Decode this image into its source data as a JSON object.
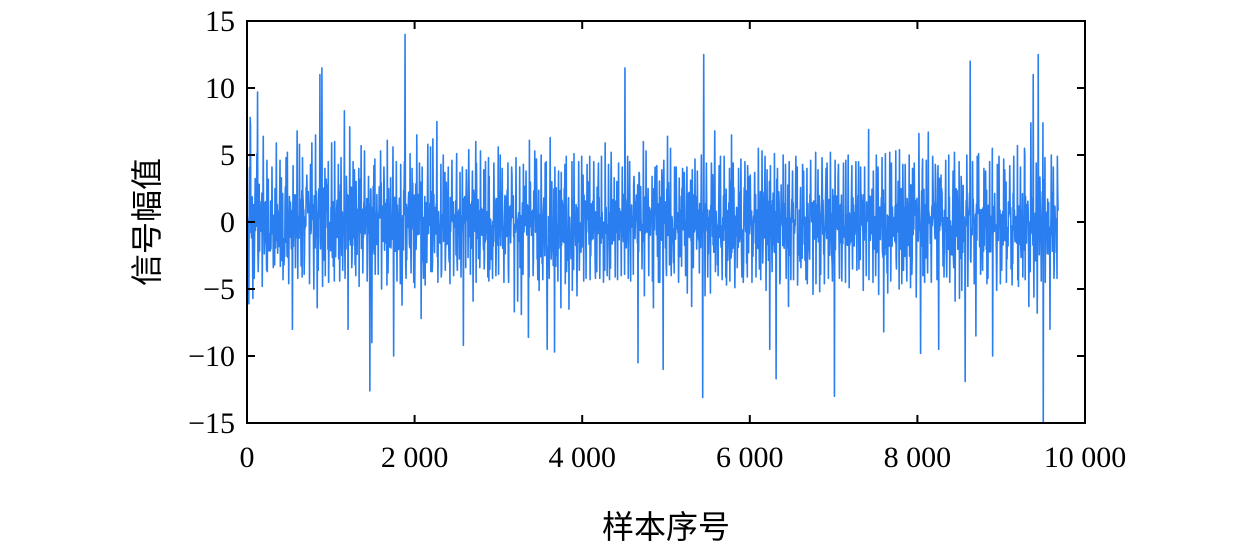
{
  "chart_data": {
    "type": "line",
    "xlabel": "样本序号",
    "ylabel": "信号幅值",
    "xlim": [
      0,
      10000
    ],
    "ylim": [
      -15,
      15
    ],
    "x_ticks": [
      0,
      2000,
      4000,
      6000,
      8000,
      10000
    ],
    "x_tick_labels": [
      "0",
      "2 000",
      "4 000",
      "6 000",
      "8 000",
      "10 000"
    ],
    "y_ticks": [
      -15,
      -10,
      -5,
      0,
      5,
      10,
      15
    ],
    "y_tick_labels": [
      "−15",
      "−10",
      "−5",
      "0",
      "5",
      "10",
      "15"
    ],
    "grid": false,
    "line_color": "#2a7ef0",
    "series": [
      {
        "x_start": 0,
        "x_step": 40,
        "y_max": [
          7.8,
          7.2,
          5.1,
          9.7,
          6.4,
          4.6,
          3.2,
          4.1,
          5.9,
          4.6,
          3.3,
          4.8,
          5.2,
          4.2,
          6.8,
          5.8,
          4.8,
          3.5,
          4.3,
          5.9,
          6.5,
          11.0,
          11.5,
          4.0,
          4.5,
          5.9,
          6.0,
          4.3,
          4.8,
          8.3,
          7.1,
          4.5,
          3.9,
          4.0,
          5.7,
          5.3,
          3.4,
          4.2,
          4.7,
          5.3,
          4.1,
          6.1,
          3.3,
          5.6,
          4.5,
          4.3,
          4.5,
          14.0,
          5.1,
          4.0,
          6.5,
          4.4,
          4.1,
          5.8,
          5.6,
          6.2,
          7.5,
          4.3,
          5.0,
          3.7,
          4.1,
          4.6,
          5.1,
          3.7,
          4.1,
          3.9,
          5.4,
          3.8,
          6.0,
          5.3,
          3.9,
          4.5,
          4.8,
          4.4,
          5.6,
          5.0,
          4.0,
          4.4,
          4.1,
          3.5,
          4.8,
          4.1,
          4.3,
          3.8,
          6.1,
          5.3,
          4.7,
          5.0,
          4.4,
          4.5,
          6.3,
          4.1,
          3.8,
          3.7,
          4.3,
          4.9,
          4.5,
          5.1,
          4.5,
          4.9,
          3.5,
          4.3,
          4.9,
          4.5,
          4.4,
          4.9,
          5.9,
          4.3,
          5.2,
          3.3,
          4.4,
          4.1,
          11.5,
          4.9,
          4.5,
          3.4,
          3.7,
          3.6,
          6.0,
          5.3,
          3.4,
          4.1,
          4.2,
          3.9,
          4.6,
          6.4,
          5.5,
          4.1,
          4.1,
          4.0,
          3.7,
          4.1,
          3.9,
          4.7,
          3.8,
          5.0,
          12.5,
          4.4,
          4.4,
          6.8,
          4.2,
          4.9,
          4.9,
          4.0,
          6.5,
          4.4,
          4.0,
          4.7,
          4.5,
          4.2,
          3.5,
          3.7,
          5.5,
          5.3,
          4.9,
          3.9,
          4.2,
          5.1,
          4.0,
          5.0,
          4.3,
          4.5,
          3.8,
          4.9,
          4.1,
          4.3,
          3.8,
          4.0,
          4.6,
          5.2,
          3.9,
          4.8,
          4.0,
          4.4,
          5.2,
          4.6,
          4.3,
          4.4,
          4.6,
          5.0,
          4.2,
          4.5,
          4.5,
          4.1,
          4.1,
          6.9,
          3.8,
          5.0,
          4.1,
          4.8,
          5.1,
          5.2,
          4.4,
          5.3,
          5.4,
          4.3,
          4.3,
          5.0,
          4.0,
          4.4,
          6.6,
          4.7,
          4.6,
          6.7,
          4.9,
          4.3,
          4.2,
          3.5,
          4.6,
          5.0,
          3.8,
          5.2,
          4.5,
          3.4,
          5.0,
          12.0,
          4.5,
          4.9,
          5.1,
          4.0,
          3.8,
          4.5,
          5.5,
          4.3,
          4.9,
          4.7,
          3.9,
          4.2,
          4.9,
          5.7,
          4.1,
          5.5,
          4.9,
          7.4,
          11.0,
          4.4,
          12.5,
          7.4,
          4.8,
          5.0,
          4.1,
          4.9
        ],
        "y_min": [
          -6.1,
          -5.7,
          -4.2,
          -3.7,
          -4.8,
          -3.6,
          -3.7,
          -3.4,
          -3.2,
          -3.3,
          -4.3,
          -3.2,
          -4.6,
          -8.0,
          -3.4,
          -4.2,
          -4.1,
          -3.9,
          -4.6,
          -5.0,
          -6.4,
          -3.6,
          -4.8,
          -4.0,
          -4.5,
          -3.3,
          -4.4,
          -4.4,
          -3.6,
          -4.2,
          -8.0,
          -3.4,
          -4.0,
          -4.8,
          -3.8,
          -4.4,
          -12.6,
          -9.0,
          -3.9,
          -3.9,
          -5.0,
          -4.7,
          -3.8,
          -10.0,
          -4.4,
          -4.6,
          -6.2,
          -4.2,
          -3.8,
          -4.5,
          -4.9,
          -7.2,
          -4.2,
          -4.7,
          -3.7,
          -3.7,
          -4.5,
          -4.1,
          -3.7,
          -3.6,
          -4.6,
          -4.0,
          -3.6,
          -4.1,
          -9.2,
          -3.4,
          -3.9,
          -5.9,
          -4.5,
          -3.4,
          -3.5,
          -4.1,
          -4.4,
          -4.2,
          -4.0,
          -3.9,
          -4.5,
          -3.4,
          -4.5,
          -6.7,
          -5.9,
          -6.9,
          -3.9,
          -8.6,
          -4.1,
          -4.0,
          -4.3,
          -5.1,
          -4.3,
          -9.5,
          -4.2,
          -9.7,
          -4.4,
          -6.4,
          -4.6,
          -3.7,
          -6.5,
          -5.1,
          -5.5,
          -3.6,
          -4.4,
          -4.2,
          -4.3,
          -4.2,
          -3.7,
          -4.2,
          -4.5,
          -4.0,
          -4.3,
          -4.1,
          -4.3,
          -4.0,
          -3.9,
          -4.2,
          -4.4,
          -3.9,
          -10.5,
          -3.5,
          -5.5,
          -4.0,
          -4.4,
          -6.4,
          -4.5,
          -4.5,
          -11.0,
          -4.0,
          -4.0,
          -3.8,
          -4.5,
          -3.3,
          -4.0,
          -5.3,
          -6.3,
          -3.4,
          -3.8,
          -13.1,
          -5.5,
          -4.1,
          -5.3,
          -3.7,
          -4.0,
          -4.3,
          -4.1,
          -4.7,
          -4.4,
          -4.9,
          -3.4,
          -4.1,
          -4.5,
          -4.1,
          -4.5,
          -4.1,
          -3.5,
          -4.3,
          -5.1,
          -9.5,
          -3.7,
          -11.7,
          -4.6,
          -4.2,
          -4.2,
          -6.3,
          -4.3,
          -4.3,
          -4.7,
          -3.4,
          -4.3,
          -4.6,
          -5.4,
          -4.6,
          -5.2,
          -3.9,
          -4.6,
          -4.2,
          -4.4,
          -13.0,
          -4.2,
          -4.4,
          -4.5,
          -4.9,
          -3.5,
          -3.6,
          -3.5,
          -5.1,
          -4.0,
          -4.3,
          -4.5,
          -4.0,
          -5.4,
          -8.2,
          -3.8,
          -5.3,
          -4.4,
          -3.5,
          -5.0,
          -4.6,
          -4.4,
          -4.9,
          -3.9,
          -5.6,
          -9.8,
          -4.0,
          -4.5,
          -3.8,
          -4.5,
          -4.3,
          -9.5,
          -4.1,
          -4.1,
          -4.5,
          -3.4,
          -5.9,
          -5.7,
          -5.1,
          -11.9,
          -4.8,
          -4.6,
          -8.5,
          -3.9,
          -3.6,
          -4.6,
          -4.2,
          -10.0,
          -5.1,
          -4.6,
          -3.6,
          -4.5,
          -3.5,
          -4.7,
          -4.3,
          -4.8,
          -4.1,
          -4.3,
          -6.3,
          -5.6,
          -6.8,
          -4.4,
          -15.0,
          -4.5,
          -8.0,
          -4.2,
          -4.2,
          -4.2
        ]
      }
    ]
  }
}
